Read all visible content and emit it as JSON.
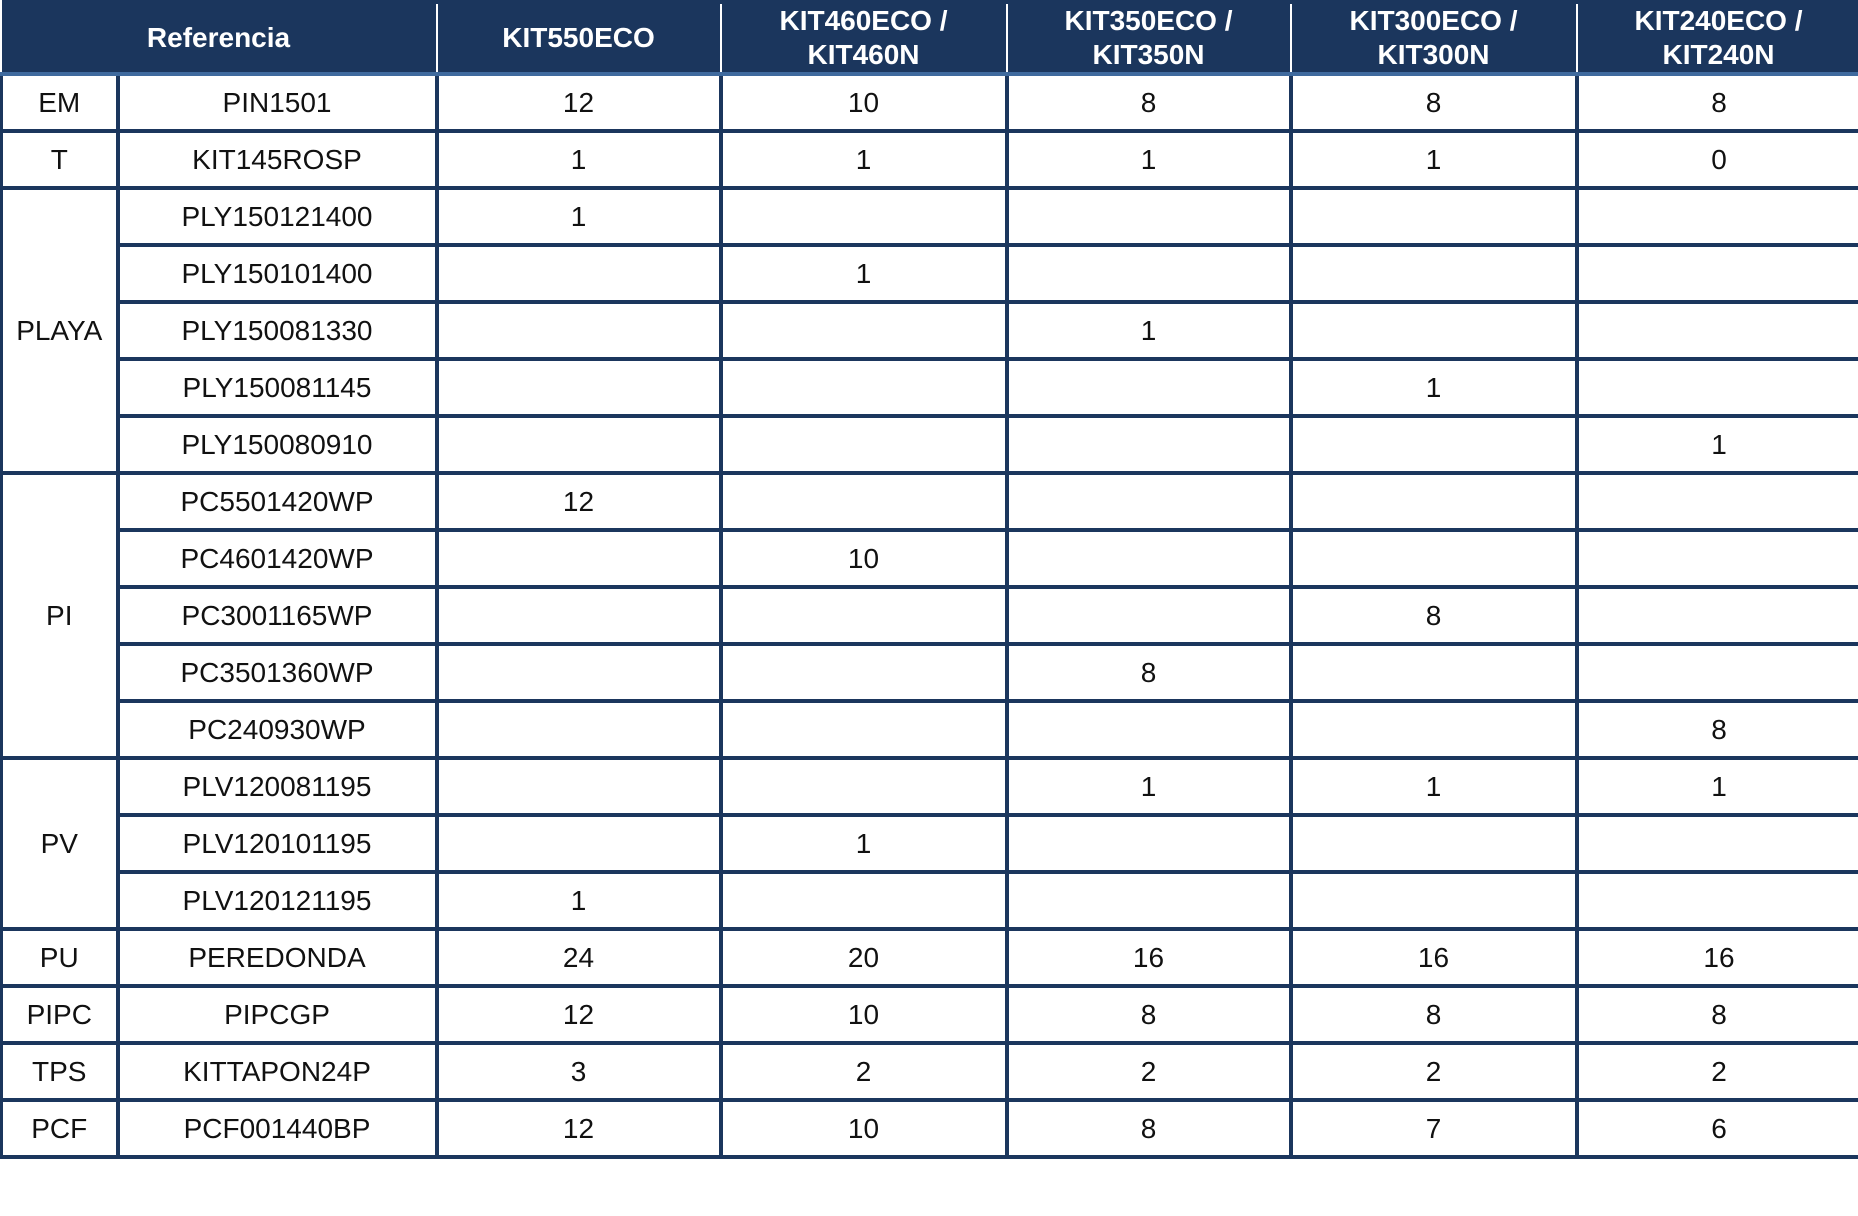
{
  "header": {
    "reference": "Referencia",
    "kits": [
      [
        "KIT550ECO"
      ],
      [
        "KIT460ECO /",
        "KIT460N"
      ],
      [
        "KIT350ECO /",
        "KIT350N"
      ],
      [
        "KIT300ECO /",
        "KIT300N"
      ],
      [
        "KIT240ECO /",
        "KIT240N"
      ]
    ]
  },
  "groups": [
    {
      "code": "EM",
      "rows": [
        {
          "ref": "PIN1501",
          "values": [
            "12",
            "10",
            "8",
            "8",
            "8"
          ]
        }
      ]
    },
    {
      "code": "T",
      "rows": [
        {
          "ref": "KIT145ROSP",
          "values": [
            "1",
            "1",
            "1",
            "1",
            "0"
          ]
        }
      ]
    },
    {
      "code": "PLAYA",
      "rows": [
        {
          "ref": "PLY150121400",
          "values": [
            "1",
            "",
            "",
            "",
            ""
          ]
        },
        {
          "ref": "PLY150101400",
          "values": [
            "",
            "1",
            "",
            "",
            ""
          ]
        },
        {
          "ref": "PLY150081330",
          "values": [
            "",
            "",
            "1",
            "",
            ""
          ]
        },
        {
          "ref": "PLY150081145",
          "values": [
            "",
            "",
            "",
            "1",
            ""
          ]
        },
        {
          "ref": "PLY150080910",
          "values": [
            "",
            "",
            "",
            "",
            "1"
          ]
        }
      ]
    },
    {
      "code": "PI",
      "rows": [
        {
          "ref": "PC5501420WP",
          "values": [
            "12",
            "",
            "",
            "",
            ""
          ]
        },
        {
          "ref": "PC4601420WP",
          "values": [
            "",
            "10",
            "",
            "",
            ""
          ]
        },
        {
          "ref": "PC3001165WP",
          "values": [
            "",
            "",
            "",
            "8",
            ""
          ]
        },
        {
          "ref": "PC3501360WP",
          "values": [
            "",
            "",
            "8",
            "",
            ""
          ]
        },
        {
          "ref": "PC240930WP",
          "values": [
            "",
            "",
            "",
            "",
            "8"
          ]
        }
      ]
    },
    {
      "code": "PV",
      "rows": [
        {
          "ref": "PLV120081195",
          "values": [
            "",
            "",
            "1",
            "1",
            "1"
          ]
        },
        {
          "ref": "PLV120101195",
          "values": [
            "",
            "1",
            "",
            "",
            ""
          ]
        },
        {
          "ref": "PLV120121195",
          "values": [
            "1",
            "",
            "",
            "",
            ""
          ]
        }
      ]
    },
    {
      "code": "PU",
      "rows": [
        {
          "ref": "PEREDONDA",
          "values": [
            "24",
            "20",
            "16",
            "16",
            "16"
          ]
        }
      ]
    },
    {
      "code": "PIPC",
      "rows": [
        {
          "ref": "PIPCGP",
          "values": [
            "12",
            "10",
            "8",
            "8",
            "8"
          ]
        }
      ]
    },
    {
      "code": "TPS",
      "rows": [
        {
          "ref": "KITTAPON24P",
          "values": [
            "3",
            "2",
            "2",
            "2",
            "2"
          ]
        }
      ]
    },
    {
      "code": "PCF",
      "rows": [
        {
          "ref": "PCF001440BP",
          "values": [
            "12",
            "10",
            "8",
            "7",
            "6"
          ]
        }
      ]
    }
  ],
  "colors": {
    "header_bg": "#1b365d",
    "border": "#1b365d"
  }
}
